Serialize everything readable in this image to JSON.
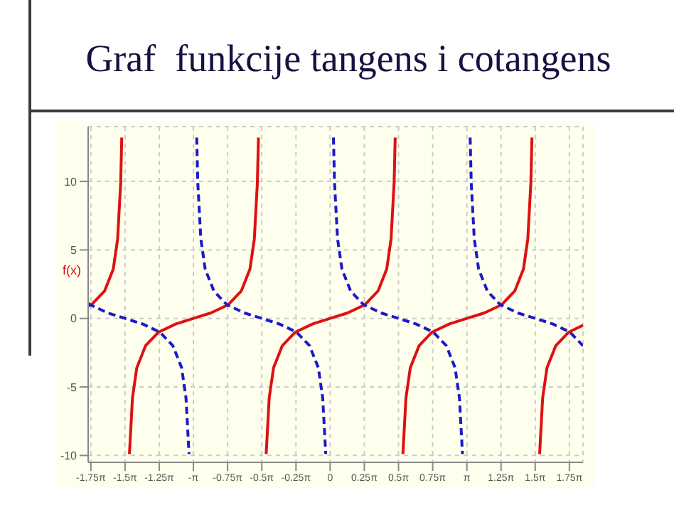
{
  "chart_data": {
    "type": "line",
    "title": "Graf  funkcije tangens i cotangens",
    "xlim": [
      -5.56,
      5.81
    ],
    "ylim": [
      -10.5,
      14
    ],
    "xticks": [
      {
        "value": -5.498,
        "label": "-1.75π"
      },
      {
        "value": -4.712,
        "label": "-1.5π"
      },
      {
        "value": -3.927,
        "label": "-1.25π"
      },
      {
        "value": -3.142,
        "label": "-π"
      },
      {
        "value": -2.356,
        "label": "-0.75π"
      },
      {
        "value": -1.571,
        "label": "-0.5π"
      },
      {
        "value": -0.785,
        "label": "-0.25π"
      },
      0,
      {
        "value": 0.785,
        "label": "0.25π"
      },
      {
        "value": 1.571,
        "label": "0.5π"
      },
      {
        "value": 2.356,
        "label": "0.75π"
      },
      {
        "value": 3.142,
        "label": "π"
      },
      {
        "value": 3.927,
        "label": "1.25π"
      },
      {
        "value": 4.712,
        "label": "1.5π"
      },
      {
        "value": 5.498,
        "label": "1.75π"
      }
    ],
    "yticks": [
      -10,
      -5,
      0,
      5,
      10
    ],
    "grid": true,
    "marker": "none",
    "annotations": [
      "f(x)"
    ],
    "series": [
      {
        "color": "#dd1111",
        "line_style": "solid",
        "x": [
          -5.56,
          -5.483,
          -5.183,
          -4.983,
          -4.883,
          -4.813,
          -4.788,
          -4.712,
          -4.612,
          -4.542,
          -4.442,
          -4.242,
          -3.942,
          -3.542,
          -3.142,
          -2.742,
          -2.342,
          -2.042,
          -1.842,
          -1.742,
          -1.672,
          -1.647,
          -1.571,
          -1.47,
          -1.4,
          -1.3,
          -1.1,
          -0.8,
          -0.4,
          0,
          0.4,
          0.8,
          1.1,
          1.3,
          1.4,
          1.47,
          1.495,
          1.571,
          1.672,
          1.742,
          1.842,
          2.042,
          2.342,
          2.742,
          3.142,
          3.542,
          3.942,
          4.242,
          4.442,
          4.542,
          4.612,
          4.637,
          4.712,
          4.813,
          4.883,
          4.983,
          5.183,
          5.483,
          5.81
        ],
        "values": [
          0.9,
          1,
          2,
          3.6,
          5.8,
          9.9,
          13.2,
          null,
          -9.9,
          -5.8,
          -3.6,
          -2,
          -1,
          -0.4,
          0,
          0.4,
          1,
          2,
          3.6,
          5.8,
          9.9,
          13.2,
          null,
          -9.9,
          -5.8,
          -3.6,
          -2,
          -1,
          -0.4,
          0,
          0.4,
          1,
          2,
          3.6,
          5.8,
          9.9,
          13.2,
          null,
          -9.9,
          -5.8,
          -3.6,
          -2,
          -1,
          -0.4,
          0,
          0.4,
          1,
          2,
          3.6,
          5.8,
          9.9,
          13.2,
          null,
          -9.9,
          -5.8,
          -3.6,
          -2,
          -1,
          -0.5
        ]
      },
      {
        "color": "#1a1acc",
        "line_style": "dashed",
        "x": [
          -5.56,
          -5.512,
          -5.112,
          -4.712,
          -4.312,
          -3.912,
          -3.612,
          -3.412,
          -3.312,
          -3.242,
          -3.142,
          -3.066,
          -3.041,
          -2.971,
          -2.871,
          -2.671,
          -2.371,
          -1.971,
          -1.571,
          -1.171,
          -0.771,
          -0.471,
          -0.271,
          -0.171,
          -0.101,
          0,
          0.076,
          0.101,
          0.171,
          0.271,
          0.471,
          0.771,
          1.171,
          1.571,
          1.971,
          2.371,
          2.671,
          2.871,
          2.971,
          3.041,
          3.142,
          3.217,
          3.242,
          3.312,
          3.412,
          3.612,
          3.912,
          4.312,
          4.712,
          5.112,
          5.512,
          5.81
        ],
        "values": [
          1.1,
          1,
          0.4,
          0,
          -0.4,
          -1,
          -2,
          -3.6,
          -5.8,
          -9.9,
          null,
          13.2,
          9.9,
          5.8,
          3.6,
          2,
          1,
          0.4,
          0,
          -0.4,
          -1,
          -2,
          -3.6,
          -5.8,
          -9.9,
          null,
          13.2,
          9.9,
          5.8,
          3.6,
          2,
          1,
          0.4,
          0,
          -0.4,
          -1,
          -2,
          -3.6,
          -5.8,
          -9.9,
          null,
          13.2,
          9.9,
          5.8,
          3.6,
          2,
          1,
          0.4,
          0,
          -0.4,
          -1,
          -2
        ]
      }
    ]
  }
}
